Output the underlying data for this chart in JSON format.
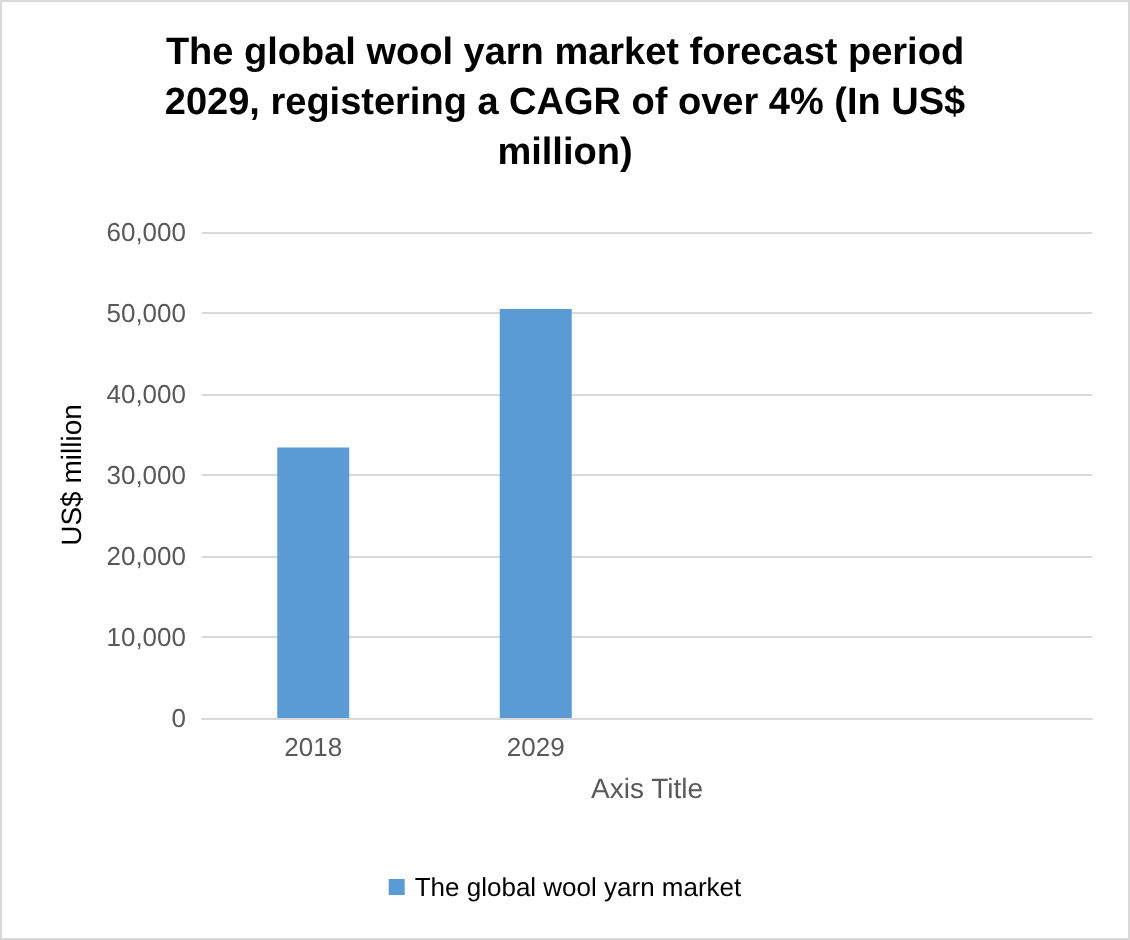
{
  "chart_data": {
    "type": "bar",
    "title": "The global wool yarn market forecast period\n2029, registering a CAGR of over 4% (In US$\nmillion)",
    "xlabel": "Axis Title",
    "ylabel": "US$ million",
    "categories": [
      "2018",
      "2029",
      null,
      null
    ],
    "series": [
      {
        "name": "The global wool yarn market",
        "color": "#5b9bd5",
        "values": [
          33400,
          50500,
          null,
          null
        ]
      }
    ],
    "ylim": [
      0,
      60000
    ],
    "yticks": [
      {
        "value": 0,
        "label": "0"
      },
      {
        "value": 10000,
        "label": "10,000"
      },
      {
        "value": 20000,
        "label": "20,000"
      },
      {
        "value": 30000,
        "label": "30,000"
      },
      {
        "value": 40000,
        "label": "40,000"
      },
      {
        "value": 50000,
        "label": "50,000"
      },
      {
        "value": 60000,
        "label": "60,000"
      }
    ],
    "grid": "y",
    "legend": "bottom"
  }
}
